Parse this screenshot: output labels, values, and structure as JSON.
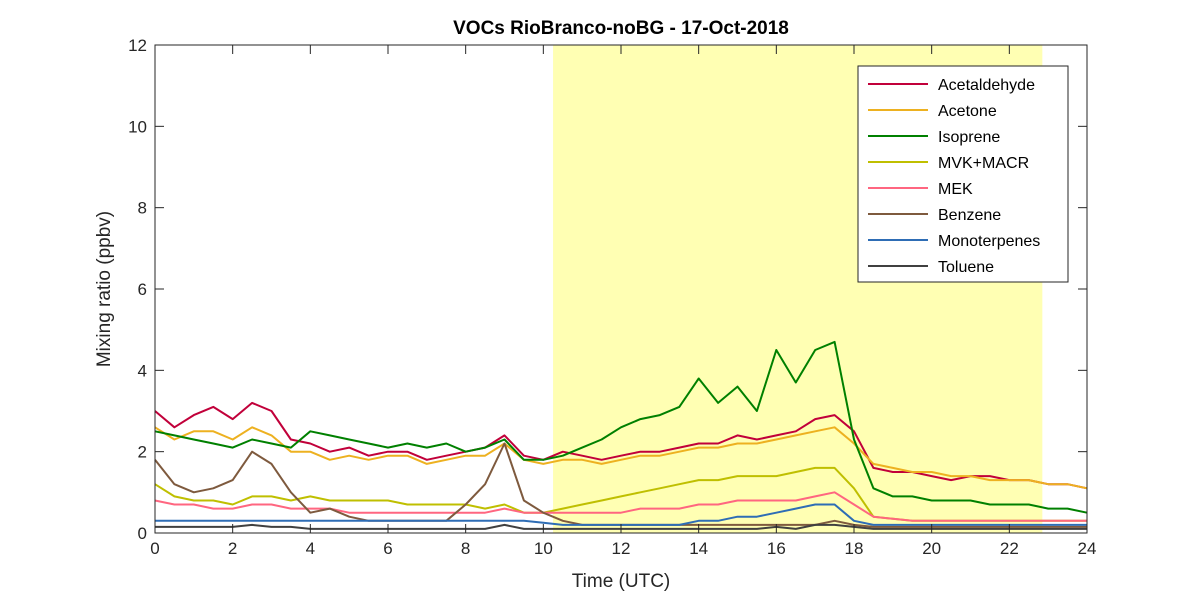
{
  "chart_data": {
    "type": "line",
    "title": "VOCs RioBranco-noBG - 17-Oct-2018",
    "xlabel": "Time (UTC)",
    "ylabel": "Mixing ratio (ppbv)",
    "xlim": [
      0,
      24
    ],
    "ylim": [
      0,
      12
    ],
    "xticks": [
      "0",
      "2",
      "4",
      "6",
      "8",
      "10",
      "12",
      "14",
      "16",
      "18",
      "20",
      "22",
      "24"
    ],
    "yticks": [
      "0",
      "2",
      "4",
      "6",
      "8",
      "10",
      "12"
    ],
    "grid": false,
    "legend_position": "top-right",
    "highlight_region": {
      "x": [
        10.25,
        22.85
      ],
      "color": "#ffffb3"
    },
    "x": [
      0,
      0.5,
      1,
      1.5,
      2,
      2.5,
      3,
      3.5,
      4,
      4.5,
      5,
      5.5,
      6,
      6.5,
      7,
      7.5,
      8,
      8.5,
      9,
      9.5,
      10,
      10.5,
      11,
      11.5,
      12,
      12.5,
      13,
      13.5,
      14,
      14.5,
      15,
      15.5,
      16,
      16.5,
      17,
      17.5,
      18,
      18.5,
      19,
      19.5,
      20,
      20.5,
      21,
      21.5,
      22,
      22.5,
      23,
      23.5,
      24
    ],
    "series": [
      {
        "name": "Acetaldehyde",
        "color": "#c1003a",
        "values": [
          3.0,
          2.6,
          2.9,
          3.1,
          2.8,
          3.2,
          3.0,
          2.3,
          2.2,
          2.0,
          2.1,
          1.9,
          2.0,
          2.0,
          1.8,
          1.9,
          2.0,
          2.1,
          2.4,
          1.9,
          1.8,
          2.0,
          1.9,
          1.8,
          1.9,
          2.0,
          2.0,
          2.1,
          2.2,
          2.2,
          2.4,
          2.3,
          2.4,
          2.5,
          2.8,
          2.9,
          2.5,
          1.6,
          1.5,
          1.5,
          1.4,
          1.3,
          1.4,
          1.4,
          1.3,
          1.3,
          1.2,
          1.2,
          1.1
        ]
      },
      {
        "name": "Acetone",
        "color": "#edb120",
        "values": [
          2.6,
          2.3,
          2.5,
          2.5,
          2.3,
          2.6,
          2.4,
          2.0,
          2.0,
          1.8,
          1.9,
          1.8,
          1.9,
          1.9,
          1.7,
          1.8,
          1.9,
          1.9,
          2.2,
          1.8,
          1.7,
          1.8,
          1.8,
          1.7,
          1.8,
          1.9,
          1.9,
          2.0,
          2.1,
          2.1,
          2.2,
          2.2,
          2.3,
          2.4,
          2.5,
          2.6,
          2.2,
          1.7,
          1.6,
          1.5,
          1.5,
          1.4,
          1.4,
          1.3,
          1.3,
          1.3,
          1.2,
          1.2,
          1.1
        ]
      },
      {
        "name": "Isoprene",
        "color": "#008000",
        "values": [
          2.5,
          2.4,
          2.3,
          2.2,
          2.1,
          2.3,
          2.2,
          2.1,
          2.5,
          2.4,
          2.3,
          2.2,
          2.1,
          2.2,
          2.1,
          2.2,
          2.0,
          2.1,
          2.3,
          1.8,
          1.8,
          1.9,
          2.1,
          2.3,
          2.6,
          2.8,
          2.9,
          3.1,
          3.8,
          3.2,
          3.6,
          3.0,
          4.5,
          3.7,
          4.5,
          4.7,
          2.3,
          1.1,
          0.9,
          0.9,
          0.8,
          0.8,
          0.8,
          0.7,
          0.7,
          0.7,
          0.6,
          0.6,
          0.5
        ]
      },
      {
        "name": "MVK+MACR",
        "color": "#bfbf00",
        "values": [
          1.2,
          0.9,
          0.8,
          0.8,
          0.7,
          0.9,
          0.9,
          0.8,
          0.9,
          0.8,
          0.8,
          0.8,
          0.8,
          0.7,
          0.7,
          0.7,
          0.7,
          0.6,
          0.7,
          0.5,
          0.5,
          0.6,
          0.7,
          0.8,
          0.9,
          1.0,
          1.1,
          1.2,
          1.3,
          1.3,
          1.4,
          1.4,
          1.4,
          1.5,
          1.6,
          1.6,
          1.1,
          0.4,
          0.35,
          0.3,
          0.3,
          0.3,
          0.3,
          0.3,
          0.3,
          0.3,
          0.3,
          0.3,
          0.3
        ]
      },
      {
        "name": "MEK",
        "color": "#ff6680",
        "values": [
          0.8,
          0.7,
          0.7,
          0.6,
          0.6,
          0.7,
          0.7,
          0.6,
          0.6,
          0.6,
          0.5,
          0.5,
          0.5,
          0.5,
          0.5,
          0.5,
          0.5,
          0.5,
          0.6,
          0.5,
          0.5,
          0.5,
          0.5,
          0.5,
          0.5,
          0.6,
          0.6,
          0.6,
          0.7,
          0.7,
          0.8,
          0.8,
          0.8,
          0.8,
          0.9,
          1.0,
          0.7,
          0.4,
          0.35,
          0.3,
          0.3,
          0.3,
          0.3,
          0.3,
          0.3,
          0.3,
          0.3,
          0.3,
          0.3
        ]
      },
      {
        "name": "Benzene",
        "color": "#7e5a3e",
        "values": [
          1.8,
          1.2,
          1.0,
          1.1,
          1.3,
          2.0,
          1.7,
          1.0,
          0.5,
          0.6,
          0.4,
          0.3,
          0.3,
          0.3,
          0.3,
          0.3,
          0.7,
          1.2,
          2.2,
          0.8,
          0.5,
          0.3,
          0.2,
          0.2,
          0.2,
          0.2,
          0.2,
          0.2,
          0.2,
          0.2,
          0.2,
          0.2,
          0.2,
          0.2,
          0.2,
          0.3,
          0.2,
          0.15,
          0.15,
          0.15,
          0.15,
          0.15,
          0.15,
          0.15,
          0.15,
          0.15,
          0.15,
          0.15,
          0.15
        ]
      },
      {
        "name": "Monoterpenes",
        "color": "#2e6db5",
        "values": [
          0.3,
          0.3,
          0.3,
          0.3,
          0.3,
          0.3,
          0.3,
          0.3,
          0.3,
          0.3,
          0.3,
          0.3,
          0.3,
          0.3,
          0.3,
          0.3,
          0.3,
          0.3,
          0.3,
          0.3,
          0.25,
          0.2,
          0.2,
          0.2,
          0.2,
          0.2,
          0.2,
          0.2,
          0.3,
          0.3,
          0.4,
          0.4,
          0.5,
          0.6,
          0.7,
          0.7,
          0.3,
          0.2,
          0.2,
          0.2,
          0.2,
          0.2,
          0.2,
          0.2,
          0.2,
          0.2,
          0.2,
          0.2,
          0.2
        ]
      },
      {
        "name": "Toluene",
        "color": "#404040",
        "values": [
          0.15,
          0.15,
          0.15,
          0.15,
          0.15,
          0.2,
          0.15,
          0.15,
          0.1,
          0.1,
          0.1,
          0.1,
          0.1,
          0.1,
          0.1,
          0.1,
          0.1,
          0.1,
          0.2,
          0.1,
          0.1,
          0.1,
          0.1,
          0.1,
          0.1,
          0.1,
          0.1,
          0.1,
          0.1,
          0.1,
          0.1,
          0.1,
          0.15,
          0.1,
          0.2,
          0.2,
          0.15,
          0.1,
          0.1,
          0.1,
          0.1,
          0.1,
          0.1,
          0.1,
          0.1,
          0.1,
          0.1,
          0.1,
          0.1
        ]
      }
    ]
  }
}
